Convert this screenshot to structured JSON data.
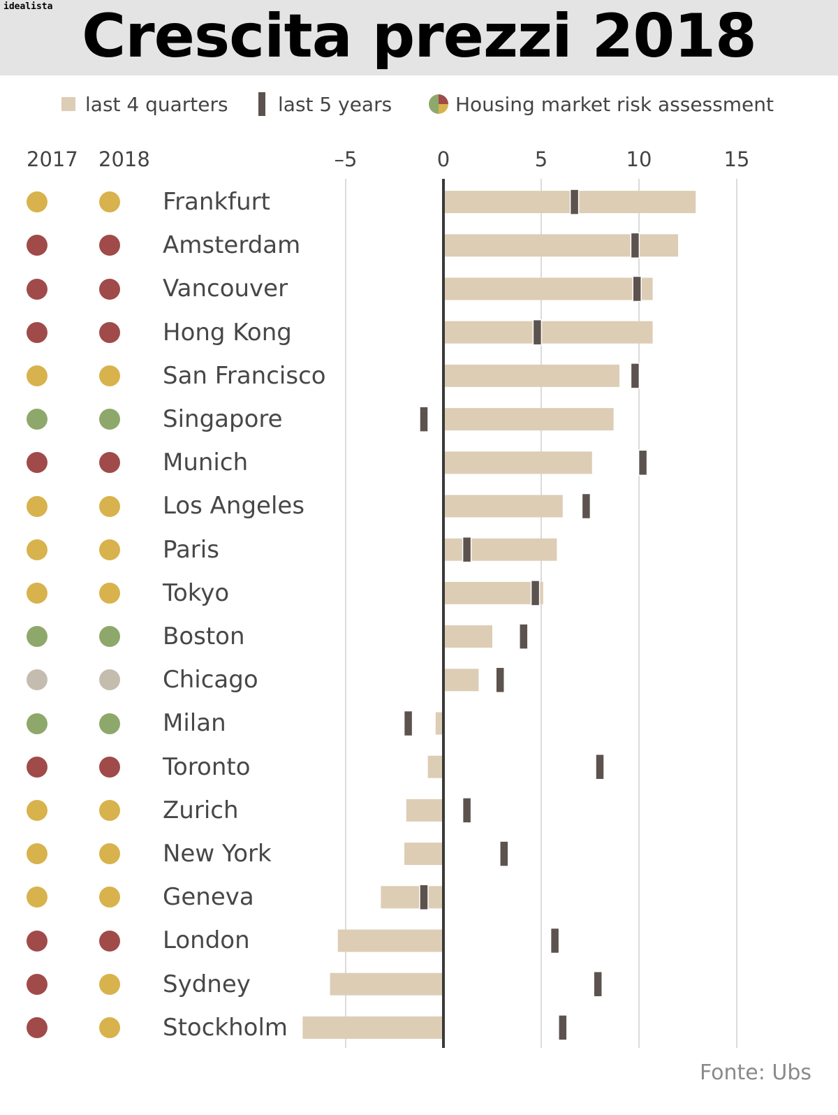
{
  "header": {
    "brand": "idealista",
    "title": "Crescita prezzi 2018"
  },
  "legend": {
    "quarters_label": "last 4 quarters",
    "years_label": "last 5 years",
    "risk_label": "Housing market risk assessment"
  },
  "columns": {
    "year_a": "2017",
    "year_b": "2018"
  },
  "risk_colors": {
    "high": "#a04a4a",
    "overvalued": "#d8b24c",
    "fair": "#8ea86b",
    "undervalued": "#c5bcb0"
  },
  "bar_colors": {
    "quarters": "#ddcdb5",
    "years": "#5c524e"
  },
  "source": "Fonte: Ubs",
  "chart_data": {
    "type": "bar",
    "orientation": "horizontal",
    "xlim": [
      -7.3,
      15
    ],
    "xticks": [
      -5,
      0,
      5,
      10,
      15
    ],
    "xtick_labels": [
      "–5",
      "0",
      "5",
      "10",
      "15"
    ],
    "grid": true,
    "categories": [
      "Frankfurt",
      "Amsterdam",
      "Vancouver",
      "Hong Kong",
      "San Francisco",
      "Singapore",
      "Munich",
      "Los Angeles",
      "Paris",
      "Tokyo",
      "Boston",
      "Chicago",
      "Milan",
      "Toronto",
      "Zurich",
      "New York",
      "Geneva",
      "London",
      "Sydney",
      "Stockholm"
    ],
    "series": [
      {
        "name": "last 4 quarters",
        "values": [
          12.9,
          12.0,
          10.7,
          10.7,
          9.0,
          8.7,
          7.6,
          6.1,
          5.8,
          5.1,
          2.5,
          1.8,
          -0.4,
          -0.8,
          -1.9,
          -2.0,
          -3.2,
          -5.4,
          -5.8,
          -7.2
        ]
      },
      {
        "name": "last 5 years",
        "values": [
          6.7,
          9.8,
          9.9,
          4.8,
          9.8,
          -1.0,
          10.2,
          7.3,
          1.2,
          4.7,
          4.1,
          2.9,
          -1.8,
          8.0,
          1.2,
          3.1,
          -1.0,
          5.7,
          7.9,
          6.1
        ]
      }
    ],
    "risk_2017": [
      "overvalued",
      "high",
      "high",
      "high",
      "overvalued",
      "fair",
      "high",
      "overvalued",
      "overvalued",
      "overvalued",
      "fair",
      "undervalued",
      "fair",
      "high",
      "overvalued",
      "overvalued",
      "overvalued",
      "high",
      "high",
      "high"
    ],
    "risk_2018": [
      "overvalued",
      "high",
      "high",
      "high",
      "overvalued",
      "fair",
      "high",
      "overvalued",
      "overvalued",
      "overvalued",
      "fair",
      "undervalued",
      "fair",
      "high",
      "overvalued",
      "overvalued",
      "overvalued",
      "high",
      "overvalued",
      "overvalued"
    ]
  }
}
